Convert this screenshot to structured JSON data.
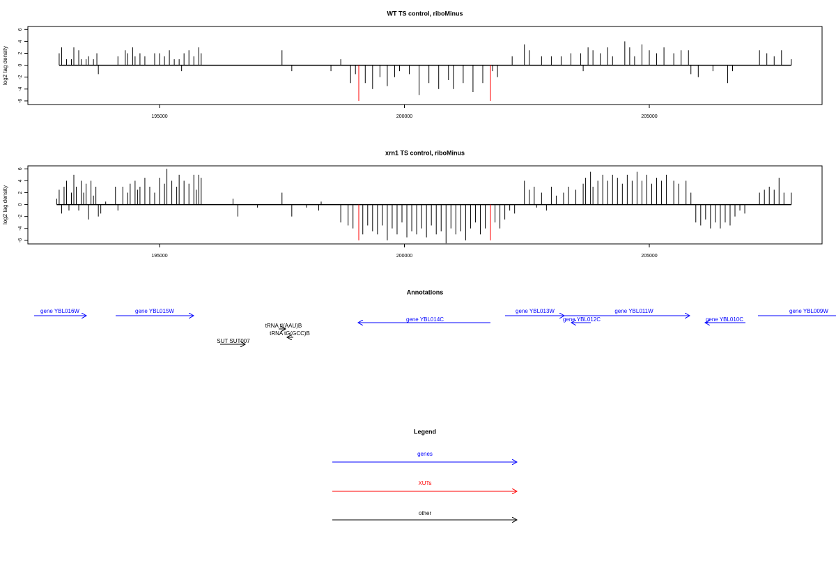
{
  "chart_data": [
    {
      "type": "bar",
      "title": "WT TS control, riboMinus",
      "y_label": "log2 tag density",
      "xlim": [
        192311,
        208528
      ],
      "ylim": [
        -6.6,
        6.5
      ],
      "xticks": [
        195000,
        200000,
        205000
      ],
      "yticks": [
        -6,
        -4,
        -2,
        0,
        2,
        4,
        6
      ],
      "series": [
        {
          "color": "#000000",
          "x": [
            192950,
            193000,
            193100,
            193200,
            193250,
            193350,
            193400,
            193500,
            193550,
            193650,
            193720,
            193750,
            194150,
            194300,
            194350,
            194450,
            194500,
            194600,
            194700,
            194900,
            195000,
            195100,
            195200,
            195300,
            195400,
            195450,
            195500,
            195600,
            195700,
            195800,
            195850,
            197500,
            197700,
            198500,
            198700,
            198900,
            199000,
            199200,
            199350,
            199500,
            199650,
            199800,
            199900,
            200100,
            200300,
            200500,
            200700,
            200900,
            201000,
            201200,
            201400,
            201600,
            201800,
            201900,
            202200,
            202450,
            202550,
            202800,
            203000,
            203200,
            203400,
            203600,
            203650,
            203750,
            203850,
            204000,
            204150,
            204250,
            204500,
            204600,
            204700,
            204850,
            205000,
            205150,
            205300,
            205500,
            205650,
            205800,
            205850,
            206000,
            206300,
            206600,
            206700,
            207250,
            207400,
            207550,
            207700,
            207900
          ],
          "values": [
            2,
            3,
            1,
            1,
            3,
            2.5,
            1,
            1,
            1.5,
            1,
            2,
            -1.5,
            1.5,
            2.5,
            2,
            3,
            1.5,
            2,
            1.5,
            2,
            2,
            1.5,
            2.5,
            1,
            1,
            -1,
            2,
            2.5,
            1.5,
            3,
            2,
            2.5,
            -1,
            -1,
            1,
            -3,
            -1.5,
            -3,
            -4,
            -2,
            -3.5,
            -2,
            -1,
            -1.5,
            -5,
            -3,
            -4,
            -2.5,
            -4,
            -3,
            -4.5,
            -3,
            -1,
            -2,
            1.5,
            3.5,
            2.5,
            1.5,
            1.5,
            1.5,
            2,
            2,
            -1,
            3,
            2.5,
            2,
            3,
            1.5,
            4,
            3,
            1.5,
            3.5,
            2.5,
            2,
            3,
            2,
            2.5,
            2.5,
            -1.5,
            -2,
            -1,
            -3,
            -1,
            2.5,
            2,
            1.5,
            2.5,
            1
          ]
        },
        {
          "color": "#ff0000",
          "x": [
            199068,
            201757
          ],
          "values": [
            -6,
            -6
          ]
        }
      ]
    },
    {
      "type": "bar",
      "title": "xrn1 TS control, riboMinus",
      "y_label": "log2 tag density",
      "xlim": [
        192311,
        208528
      ],
      "ylim": [
        -6.6,
        6.5
      ],
      "xticks": [
        195000,
        200000,
        205000
      ],
      "yticks": [
        -6,
        -4,
        -2,
        0,
        2,
        4,
        6
      ],
      "series": [
        {
          "color": "#000000",
          "x": [
            192900,
            192950,
            193000,
            193050,
            193100,
            193150,
            193200,
            193250,
            193300,
            193350,
            193400,
            193450,
            193500,
            193550,
            193600,
            193650,
            193700,
            193750,
            193800,
            193900,
            194100,
            194150,
            194250,
            194350,
            194400,
            194500,
            194550,
            194600,
            194700,
            194800,
            194900,
            195000,
            195100,
            195150,
            195250,
            195350,
            195400,
            195500,
            195600,
            195700,
            195750,
            195800,
            195850,
            196500,
            196600,
            197000,
            197500,
            197700,
            198000,
            198250,
            198300,
            198700,
            198850,
            198950,
            199150,
            199250,
            199350,
            199450,
            199550,
            199650,
            199750,
            199850,
            199950,
            200050,
            200150,
            200250,
            200350,
            200450,
            200550,
            200650,
            200750,
            200850,
            200950,
            201050,
            201150,
            201250,
            201350,
            201450,
            201550,
            201650,
            201850,
            201950,
            202050,
            202150,
            202250,
            202450,
            202550,
            202650,
            202700,
            202800,
            202900,
            203000,
            203100,
            203250,
            203350,
            203500,
            203650,
            203700,
            203800,
            203850,
            203950,
            204050,
            204150,
            204250,
            204350,
            204450,
            204550,
            204650,
            204750,
            204850,
            204950,
            205050,
            205150,
            205250,
            205350,
            205500,
            205600,
            205750,
            205850,
            205950,
            206050,
            206150,
            206250,
            206350,
            206450,
            206550,
            206650,
            206750,
            206850,
            206950,
            207250,
            207350,
            207450,
            207550,
            207650,
            207750,
            207900
          ],
          "values": [
            1,
            2.5,
            -1.5,
            3,
            4,
            -1,
            2,
            5,
            3,
            -1,
            4,
            2,
            3.5,
            -2.5,
            4,
            1.5,
            3,
            -2,
            -1.5,
            0.5,
            3,
            -1,
            3,
            2,
            3.5,
            4,
            2.5,
            3,
            4.5,
            3,
            2,
            4.5,
            3.5,
            6,
            4,
            3,
            5,
            4,
            3.5,
            5,
            2.5,
            5,
            4.5,
            1,
            -2,
            -0.5,
            2,
            -2,
            -0.5,
            -1,
            0.5,
            -3,
            -3.5,
            -4,
            -5,
            -3.5,
            -4.5,
            -5,
            -3.5,
            -6,
            -4,
            -5,
            -3,
            -5.5,
            -4.5,
            -5,
            -4,
            -5.5,
            -3.5,
            -5,
            -4.5,
            -6.5,
            -4,
            -5,
            -4.5,
            -6,
            -4,
            -3,
            -5,
            -4,
            -3,
            -4,
            -2.5,
            -1,
            -1.5,
            4,
            2.5,
            3,
            -0.5,
            2,
            -1,
            3,
            1.5,
            2,
            3,
            2.5,
            3.5,
            4.5,
            5.5,
            3,
            4,
            5,
            4,
            5,
            4.5,
            3.5,
            5,
            4,
            5.5,
            4,
            5,
            3.5,
            4.5,
            4,
            5,
            4,
            3.5,
            4,
            2,
            -3,
            -3.5,
            -2.5,
            -4,
            -3,
            -4,
            -3,
            -3.5,
            -2,
            -1,
            -1.5,
            2,
            2.5,
            3,
            2.5,
            4.5,
            2,
            2
          ]
        },
        {
          "color": "#ff0000",
          "x": [
            199068,
            201757
          ],
          "values": [
            -6,
            -6
          ]
        }
      ]
    }
  ],
  "annotations": {
    "title": "Annotations",
    "items": [
      "gene YBL016W",
      "gene YBL015W",
      "gene YBL014C",
      "gene YBL013W",
      "gene YBL012C",
      "gene YBL011W",
      "gene YBL010C",
      "gene YBL009W",
      "tRNA tI(AAU)B",
      "tRNA tG(GCC)B",
      "SUT SUT007"
    ]
  },
  "legend": {
    "title": "Legend",
    "items": [
      "genes",
      "XUTs",
      "other"
    ]
  }
}
